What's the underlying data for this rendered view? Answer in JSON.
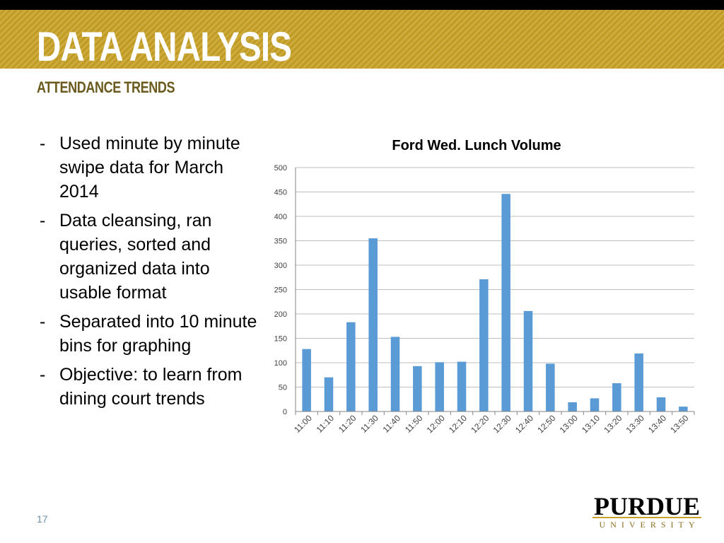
{
  "slide": {
    "title": "DATA ANALYSIS",
    "subtitle": "ATTENDANCE TRENDS",
    "page_number": "17",
    "bullet_marker": "-",
    "bullets": [
      "Used minute by minute swipe data for March 2014",
      "Data cleansing, ran queries, sorted and organized data into usable format",
      "Separated into 10 minute bins for graphing",
      "Objective: to learn from dining court trends"
    ],
    "logo": {
      "wordmark": "PURDUE",
      "subtext": "UNIVERSITY"
    }
  },
  "colors": {
    "gold": "#c9a227",
    "bar": "#5b9bd5",
    "title_text": "#ffffff",
    "subtitle_text": "#6b5a1e"
  },
  "chart_data": {
    "type": "bar",
    "title": "Ford Wed. Lunch Volume",
    "xlabel": "",
    "ylabel": "",
    "categories": [
      "11:00",
      "11:10",
      "11:20",
      "11:30",
      "11:40",
      "11:50",
      "12:00",
      "12:10",
      "12:20",
      "12:30",
      "12:40",
      "12:50",
      "13:00",
      "13:10",
      "13:20",
      "13:30",
      "13:40",
      "13:50"
    ],
    "values": [
      128,
      70,
      183,
      355,
      153,
      93,
      101,
      102,
      271,
      446,
      206,
      98,
      19,
      27,
      58,
      119,
      29,
      10
    ],
    "ylim": [
      0,
      500
    ],
    "yticks": [
      0,
      50,
      100,
      150,
      200,
      250,
      300,
      350,
      400,
      450,
      500
    ],
    "grid": true,
    "legend": "none"
  }
}
